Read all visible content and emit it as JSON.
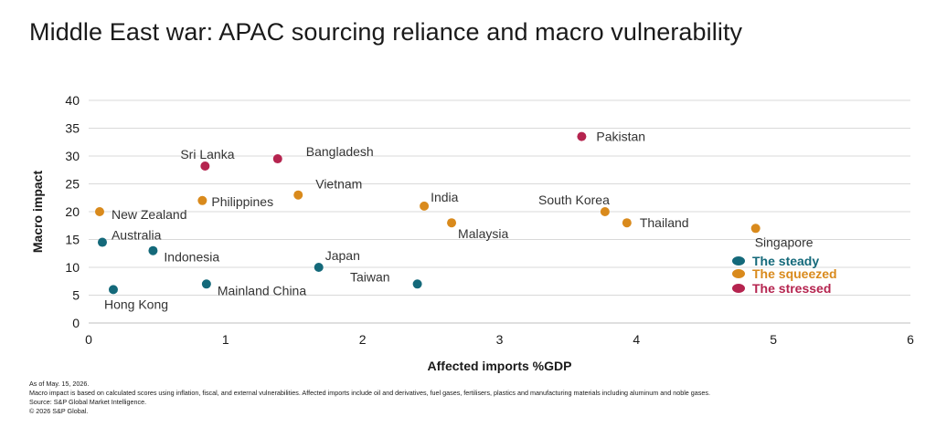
{
  "title": "Middle East war: APAC sourcing reliance and macro vulnerability",
  "footnotes": {
    "as_of": "As of May. 15, 2026.",
    "note": "Macro impact is based on calculated scores using inflation, fiscal, and external vulnerabilities. Affected imports include oil and derivatives, fuel gases, fertilisers, plastics and manufacturing materials including aluminum and noble gases.",
    "source": "Source: S&P Global Market Intelligence.",
    "copyright": "© 2026 S&P Global."
  },
  "colors": {
    "steady": "#14697a",
    "squeezed": "#d98a1c",
    "stressed": "#b5244f",
    "grid": "#d9d9d9",
    "text": "#1a1a1a"
  },
  "chart_data": {
    "type": "scatter",
    "xlabel": "Affected imports %GDP",
    "ylabel": "Macro impact",
    "xlim": [
      0,
      6
    ],
    "ylim": [
      0,
      40
    ],
    "xticks": [
      0,
      1,
      2,
      3,
      4,
      5,
      6
    ],
    "yticks": [
      0,
      5,
      10,
      15,
      20,
      25,
      30,
      35,
      40
    ],
    "grid": "horizontal",
    "legend_position": "right",
    "series": [
      {
        "name": "The steady",
        "color": "#14697a",
        "points": [
          {
            "label": "Australia",
            "x": 0.1,
            "y": 14.5
          },
          {
            "label": "Indonesia",
            "x": 0.47,
            "y": 13
          },
          {
            "label": "Hong Kong",
            "x": 0.18,
            "y": 6
          },
          {
            "label": "Mainland China",
            "x": 0.86,
            "y": 7
          },
          {
            "label": "Japan",
            "x": 1.68,
            "y": 10
          },
          {
            "label": "Taiwan",
            "x": 2.4,
            "y": 7
          }
        ]
      },
      {
        "name": "The squeezed",
        "color": "#d98a1c",
        "points": [
          {
            "label": "New Zealand",
            "x": 0.08,
            "y": 20
          },
          {
            "label": "Philippines",
            "x": 0.83,
            "y": 22
          },
          {
            "label": "Vietnam",
            "x": 1.53,
            "y": 23
          },
          {
            "label": "India",
            "x": 2.45,
            "y": 21
          },
          {
            "label": "Malaysia",
            "x": 2.65,
            "y": 18
          },
          {
            "label": "South Korea",
            "x": 3.77,
            "y": 20
          },
          {
            "label": "Thailand",
            "x": 3.93,
            "y": 18
          },
          {
            "label": "Singapore",
            "x": 4.87,
            "y": 17
          }
        ]
      },
      {
        "name": "The stressed",
        "color": "#b5244f",
        "points": [
          {
            "label": "Sri Lanka",
            "x": 0.85,
            "y": 28.2
          },
          {
            "label": "Bangladesh",
            "x": 1.38,
            "y": 29.5
          },
          {
            "label": "Pakistan",
            "x": 3.6,
            "y": 33.5
          }
        ]
      }
    ]
  }
}
